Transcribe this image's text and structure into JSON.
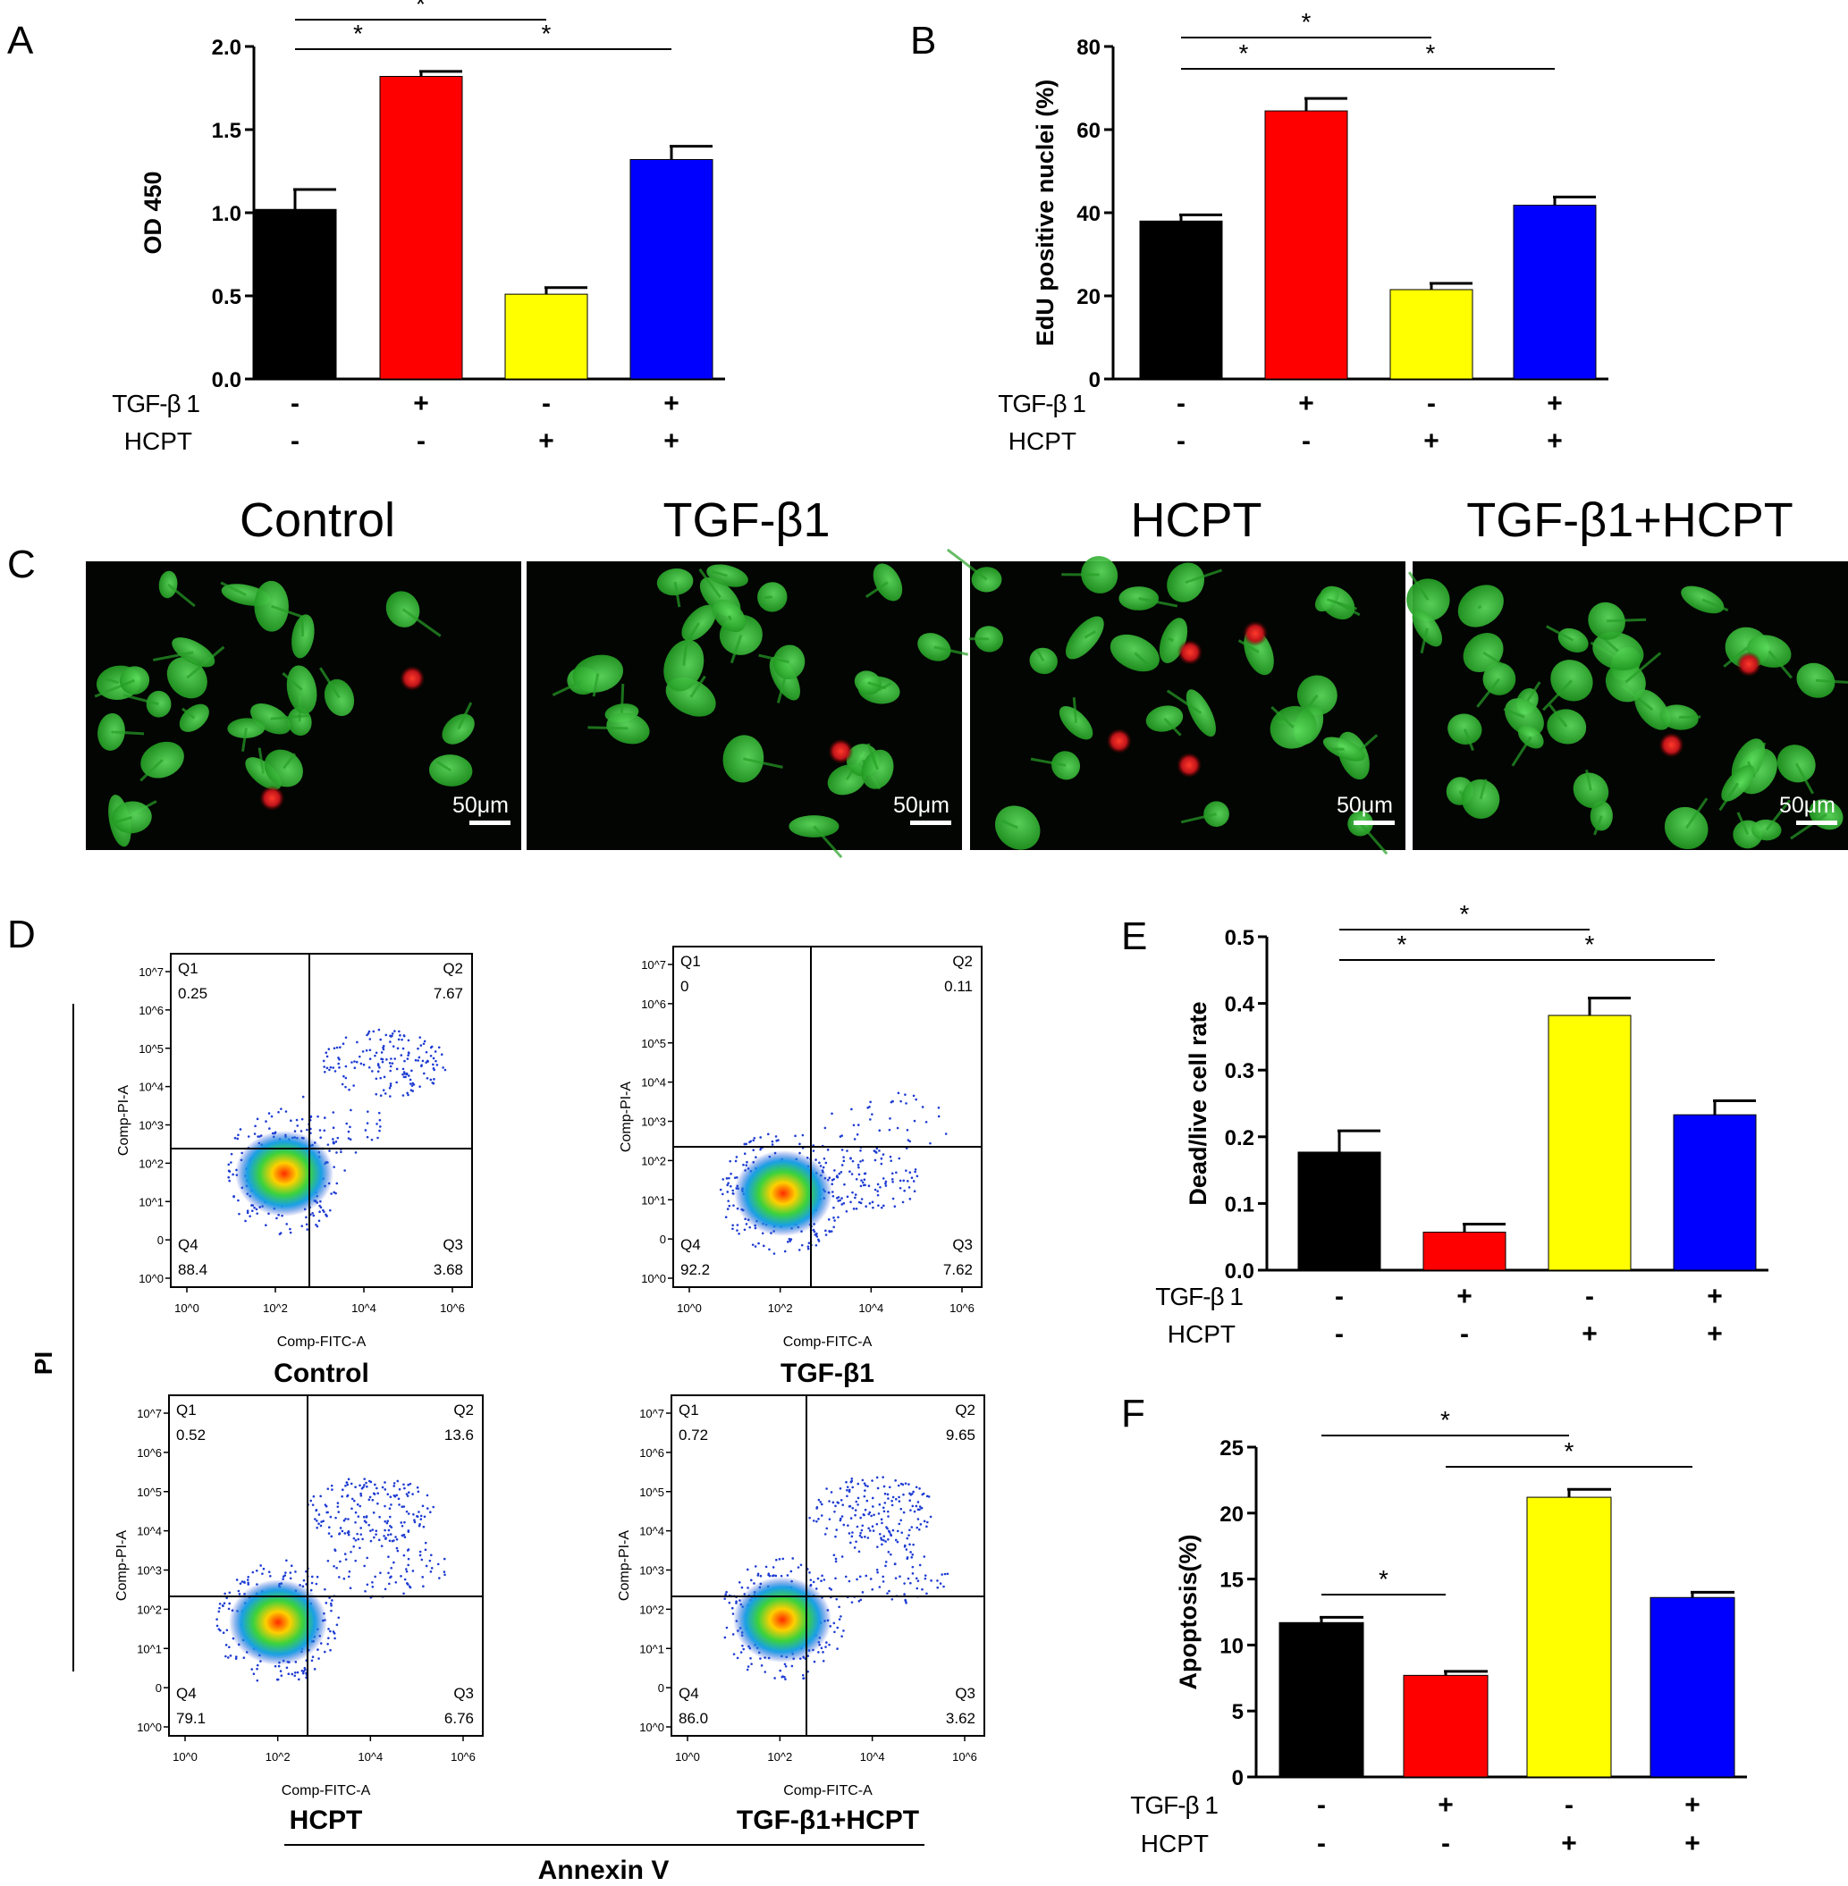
{
  "panel_letters": [
    "A",
    "B",
    "C",
    "D",
    "E",
    "F"
  ],
  "treatment_labels": {
    "tgf": "TGF-β 1",
    "hcpt": "HCPT"
  },
  "chart_data": [
    {
      "panel": "A",
      "type": "bar",
      "ylabel": "OD 450",
      "ylim": [
        0,
        2.0
      ],
      "yticks": [
        "0.0",
        "0.5",
        "1.0",
        "1.5",
        "2.0"
      ],
      "tgf_row": [
        "-",
        "+",
        "-",
        "+"
      ],
      "hcpt_row": [
        "-",
        "-",
        "+",
        "+"
      ],
      "values": [
        1.02,
        1.82,
        0.51,
        1.32
      ],
      "errors": [
        0.12,
        0.03,
        0.04,
        0.08
      ],
      "colors": [
        "#000000",
        "#ff0000",
        "#ffff00",
        "#0000ff"
      ],
      "significance": [
        {
          "from": 0,
          "to": 1,
          "label": "*"
        },
        {
          "from": 1,
          "to": 3,
          "label": "*"
        },
        {
          "from": 0,
          "to": 2,
          "label": "*"
        }
      ]
    },
    {
      "panel": "B",
      "type": "bar",
      "ylabel": "EdU positive nuclei (%)",
      "ylim": [
        0,
        80
      ],
      "yticks": [
        "0",
        "20",
        "40",
        "60",
        "80"
      ],
      "tgf_row": [
        "-",
        "+",
        "-",
        "+"
      ],
      "hcpt_row": [
        "-",
        "-",
        "+",
        "+"
      ],
      "values": [
        38,
        64.5,
        21.5,
        41.8
      ],
      "errors": [
        1.5,
        3,
        1.5,
        2
      ],
      "colors": [
        "#000000",
        "#ff0000",
        "#ffff00",
        "#0000ff"
      ],
      "significance": [
        {
          "from": 0,
          "to": 1,
          "label": "*"
        },
        {
          "from": 1,
          "to": 3,
          "label": "*"
        },
        {
          "from": 0,
          "to": 2,
          "label": "*"
        }
      ]
    },
    {
      "panel": "E",
      "type": "bar",
      "ylabel": "Dead/live cell rate",
      "ylim": [
        0,
        0.5
      ],
      "yticks": [
        "0.0",
        "0.1",
        "0.2",
        "0.3",
        "0.4",
        "0.5"
      ],
      "tgf_row": [
        "-",
        "+",
        "-",
        "+"
      ],
      "hcpt_row": [
        "-",
        "-",
        "+",
        "+"
      ],
      "values": [
        0.177,
        0.057,
        0.382,
        0.233
      ],
      "errors": [
        0.032,
        0.012,
        0.026,
        0.021
      ],
      "colors": [
        "#000000",
        "#ff0000",
        "#ffff00",
        "#0000ff"
      ],
      "significance": [
        {
          "from": 0,
          "to": 1,
          "label": "*"
        },
        {
          "from": 1,
          "to": 3,
          "label": "*"
        },
        {
          "from": 0,
          "to": 2,
          "label": "*"
        }
      ]
    },
    {
      "panel": "F",
      "type": "bar",
      "ylabel": "Apoptosis(%)",
      "ylim": [
        0,
        25
      ],
      "yticks": [
        "0",
        "5",
        "10",
        "15",
        "20",
        "25"
      ],
      "tgf_row": [
        "-",
        "+",
        "-",
        "+"
      ],
      "hcpt_row": [
        "-",
        "-",
        "+",
        "+"
      ],
      "values": [
        11.7,
        7.7,
        21.2,
        13.6
      ],
      "errors": [
        0.4,
        0.3,
        0.6,
        0.4
      ],
      "colors": [
        "#000000",
        "#ff0000",
        "#ffff00",
        "#0000ff"
      ],
      "significance": [
        {
          "from": 0,
          "to": 2,
          "label": "*"
        },
        {
          "from": 1,
          "to": 3,
          "label": "*"
        },
        {
          "from": 0,
          "to": 1,
          "label": "*"
        }
      ]
    }
  ],
  "microscopy": {
    "titles": [
      "Control",
      "TGF-β1",
      "HCPT",
      "TGF-β1+HCPT"
    ],
    "scale_bar": "50μm"
  },
  "flow": {
    "y_axis_label": "PI",
    "x_axis_label": "Annexin V",
    "channel_x": "Comp-FITC-A",
    "channel_y": "Comp-PI-A",
    "x_ticks": [
      "10^0",
      "10^2",
      "10^4",
      "10^6"
    ],
    "y_ticks": [
      "10^7",
      "10^6",
      "10^5",
      "10^4",
      "10^3",
      "10^2",
      "10^1",
      "0",
      "10^0"
    ],
    "plots": [
      {
        "title": "Control",
        "q1": "0.25",
        "q2": "7.67",
        "q3": "3.68",
        "q4": "88.4"
      },
      {
        "title": "TGF-β1",
        "q1": "0",
        "q2": "0.11",
        "q3": "7.62",
        "q4": "92.2"
      },
      {
        "title": "HCPT",
        "q1": "0.52",
        "q2": "13.6",
        "q3": "6.76",
        "q4": "79.1"
      },
      {
        "title": "TGF-β1+HCPT",
        "q1": "0.72",
        "q2": "9.65",
        "q3": "3.62",
        "q4": "86.0"
      }
    ]
  }
}
